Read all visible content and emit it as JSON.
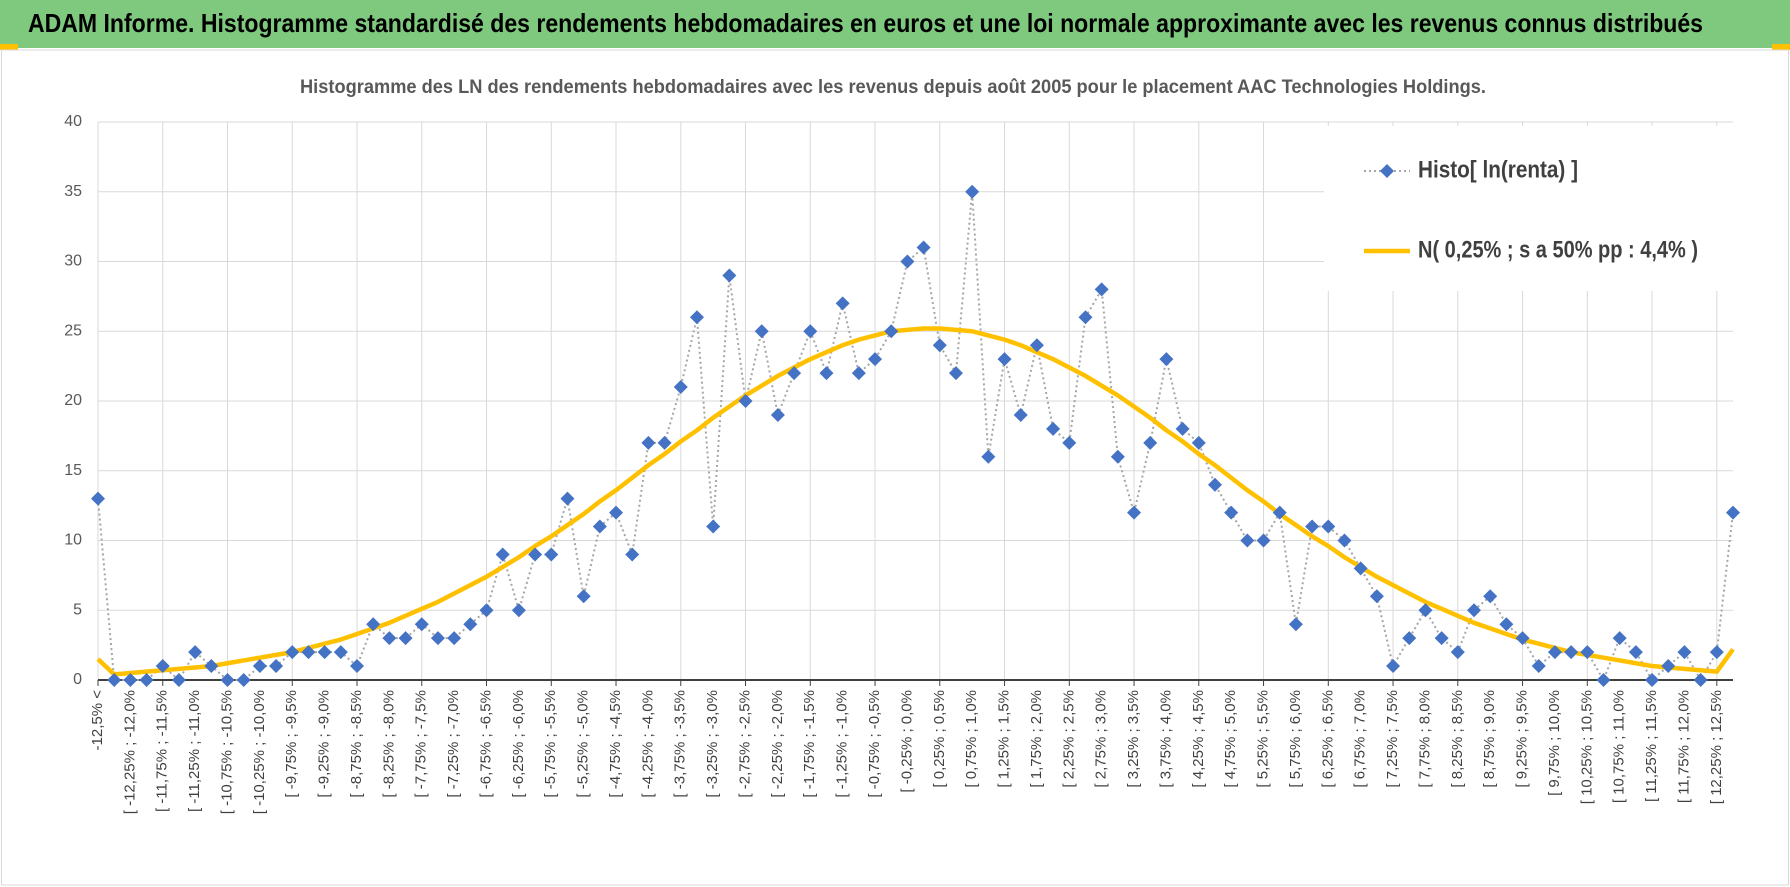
{
  "chart_data": {
    "type": "line",
    "title": "ADAM Informe. Histogramme standardisé des rendements hebdomadaires en euros et une loi normale approximante avec les revenus connus distribués",
    "subtitle": "Histogramme des LN des rendements hebdomadaires avec les revenus depuis août 2005 pour le placement AAC Technologies Holdings.",
    "categories": [
      "-12,5% <",
      null,
      "[ -12,25% ; -12,0%",
      null,
      "[ -11,75% ; -11,5%",
      null,
      "[ -11,25% ; -11,0%",
      null,
      "[ -10,75% ; -10,5%",
      null,
      "[ -10,25% ; -10,0%",
      null,
      "[ -9,75% ; -9,5%",
      null,
      "[ -9,25% ; -9,0%",
      null,
      "[ -8,75% ; -8,5%",
      null,
      "[ -8,25% ; -8,0%",
      null,
      "[ -7,75% ; -7,5%",
      null,
      "[ -7,25% ; -7,0%",
      null,
      "[ -6,75% ; -6,5%",
      null,
      "[ -6,25% ; -6,0%",
      null,
      "[ -5,75% ; -5,5%",
      null,
      "[ -5,25% ; -5,0%",
      null,
      "[ -4,75% ; -4,5%",
      null,
      "[ -4,25% ; -4,0%",
      null,
      "[ -3,75% ; -3,5%",
      null,
      "[ -3,25% ; -3,0%",
      null,
      "[ -2,75% ; -2,5%",
      null,
      "[ -2,25% ; -2,0%",
      null,
      "[ -1,75% ; -1,5%",
      null,
      "[ -1,25% ; -1,0%",
      null,
      "[ -0,75% ; -0,5%",
      null,
      "[ -0,25% ; 0,0%",
      null,
      "[ 0,25% ; 0,5%",
      null,
      "[ 0,75% ; 1,0%",
      null,
      "[ 1,25% ; 1,5%",
      null,
      "[ 1,75% ; 2,0%",
      null,
      "[ 2,25% ; 2,5%",
      null,
      "[ 2,75% ; 3,0%",
      null,
      "[ 3,25% ; 3,5%",
      null,
      "[ 3,75% ; 4,0%",
      null,
      "[ 4,25% ; 4,5%",
      null,
      "[ 4,75% ; 5,0%",
      null,
      "[ 5,25% ; 5,5%",
      null,
      "[ 5,75% ; 6,0%",
      null,
      "[ 6,25% ; 6,5%",
      null,
      "[ 6,75% ; 7,0%",
      null,
      "[ 7,25% ; 7,5%",
      null,
      "[ 7,75% ; 8,0%",
      null,
      "[ 8,25% ; 8,5%",
      null,
      "[ 8,75% ; 9,0%",
      null,
      "[ 9,25% ; 9,5%",
      null,
      "[ 9,75% ; 10,0%",
      null,
      "[ 10,25% ; 10,5%",
      null,
      "[ 10,75% ; 11,0%",
      null,
      "[ 11,25% ; 11,5%",
      null,
      "[ 11,75% ; 12,0%",
      null,
      "[ 12,25% ; 12,5%",
      null
    ],
    "series": [
      {
        "name": "Histo[ ln(renta) ]",
        "color": "#4472c4",
        "line_color": "#a6a6a6",
        "marker": "diamond",
        "line_style": "dotted",
        "values": [
          13,
          0,
          0,
          0,
          1,
          0,
          2,
          1,
          0,
          0,
          1,
          1,
          2,
          2,
          2,
          2,
          1,
          4,
          3,
          3,
          4,
          3,
          3,
          4,
          5,
          9,
          5,
          9,
          9,
          13,
          6,
          11,
          12,
          9,
          17,
          17,
          21,
          26,
          11,
          29,
          20,
          25,
          19,
          22,
          25,
          22,
          27,
          22,
          23,
          25,
          30,
          31,
          24,
          22,
          35,
          16,
          23,
          19,
          24,
          18,
          17,
          26,
          28,
          16,
          12,
          17,
          23,
          18,
          17,
          14,
          12,
          10,
          10,
          12,
          4,
          11,
          11,
          10,
          8,
          6,
          1,
          3,
          5,
          3,
          2,
          5,
          6,
          4,
          3,
          1,
          2,
          2,
          2,
          0,
          3,
          2,
          0,
          1,
          2,
          0,
          2,
          12
        ]
      },
      {
        "name": "N( 0,25% ; s a 50% pp : 4,4% )",
        "color": "#ffc000",
        "marker": "none",
        "line_style": "solid",
        "values": [
          1.5,
          0.4,
          0.5,
          0.6,
          0.7,
          0.8,
          0.9,
          1.0,
          1.2,
          1.4,
          1.6,
          1.8,
          2.0,
          2.3,
          2.6,
          2.9,
          3.3,
          3.7,
          4.1,
          4.6,
          5.1,
          5.6,
          6.2,
          6.8,
          7.4,
          8.1,
          8.8,
          9.6,
          10.3,
          11.1,
          11.9,
          12.8,
          13.6,
          14.5,
          15.4,
          16.2,
          17.1,
          17.9,
          18.8,
          19.6,
          20.4,
          21.1,
          21.8,
          22.4,
          23.0,
          23.5,
          24.0,
          24.4,
          24.7,
          25.0,
          25.1,
          25.2,
          25.2,
          25.1,
          25.0,
          24.7,
          24.4,
          24.0,
          23.5,
          23.0,
          22.4,
          21.8,
          21.1,
          20.4,
          19.6,
          18.8,
          17.9,
          17.1,
          16.2,
          15.4,
          14.5,
          13.6,
          12.8,
          11.9,
          11.1,
          10.3,
          9.6,
          8.8,
          8.1,
          7.4,
          6.8,
          6.2,
          5.6,
          5.1,
          4.6,
          4.1,
          3.7,
          3.3,
          2.9,
          2.6,
          2.3,
          2.0,
          1.8,
          1.6,
          1.4,
          1.2,
          1.0,
          0.9,
          0.8,
          0.7,
          0.6,
          2.2
        ]
      }
    ],
    "ylim": [
      0,
      40
    ],
    "yticks": [
      0,
      5,
      10,
      15,
      20,
      25,
      30,
      35,
      40
    ],
    "grid": true,
    "legend": "upper right"
  }
}
